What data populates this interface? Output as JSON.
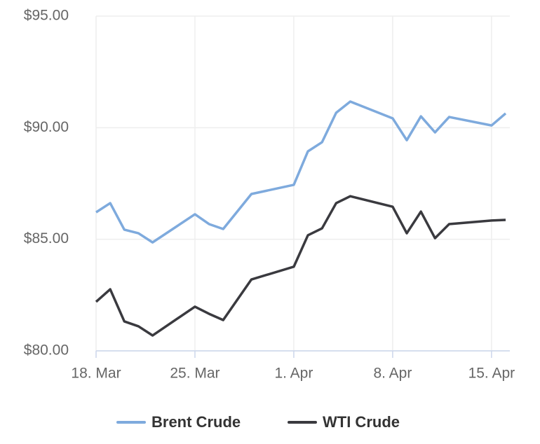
{
  "chart_data": {
    "type": "line",
    "x": [
      "03-18",
      "03-19",
      "03-20",
      "03-21",
      "03-22",
      "03-25",
      "03-26",
      "03-27",
      "03-29",
      "04-01",
      "04-02",
      "04-03",
      "04-04",
      "04-05",
      "04-08",
      "04-09",
      "04-10",
      "04-11",
      "04-12",
      "04-15",
      "04-16"
    ],
    "series": [
      {
        "name": "Brent Crude",
        "color": "#7eaadd",
        "values": [
          86.21,
          86.62,
          85.43,
          85.27,
          84.86,
          86.12,
          85.68,
          85.46,
          87.03,
          87.44,
          88.94,
          89.35,
          90.67,
          91.17,
          90.42,
          89.44,
          90.51,
          89.79,
          90.48,
          90.1,
          90.64
        ]
      },
      {
        "name": "WTI Crude",
        "color": "#3a3a3f",
        "values": [
          82.2,
          82.76,
          81.32,
          81.1,
          80.69,
          81.98,
          81.66,
          81.38,
          83.2,
          83.77,
          85.18,
          85.49,
          86.62,
          86.93,
          86.46,
          85.27,
          86.24,
          85.05,
          85.68,
          85.84,
          85.87
        ]
      }
    ],
    "xlim": [
      "03-18",
      "04-16"
    ],
    "xticks": [
      {
        "value": "03-18",
        "label": "18. Mar"
      },
      {
        "value": "03-25",
        "label": "25. Mar"
      },
      {
        "value": "04-01",
        "label": "1. Apr"
      },
      {
        "value": "04-08",
        "label": "8. Apr"
      },
      {
        "value": "04-15",
        "label": "15. Apr"
      }
    ],
    "ylim": [
      80,
      95
    ],
    "yticks": [
      {
        "value": 80,
        "label": "$80.00"
      },
      {
        "value": 85,
        "label": "$85.00"
      },
      {
        "value": 90,
        "label": "$90.00"
      },
      {
        "value": 95,
        "label": "$95.00"
      }
    ],
    "grid": true,
    "legend": "bottom"
  }
}
